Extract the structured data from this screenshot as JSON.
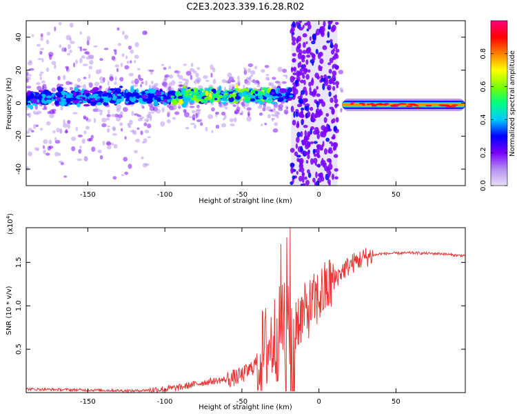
{
  "title": "C2E3.2023.339.16.28.R02",
  "chart_data": [
    {
      "type": "heatmap",
      "xlabel": "Height of straight line (km)",
      "ylabel": "Frequency (Hz)",
      "xlim": [
        -190,
        95
      ],
      "ylim": [
        -50,
        50
      ],
      "xticks": [
        -150,
        -100,
        -50,
        0,
        50
      ],
      "yticks": [
        -40,
        -20,
        0,
        20,
        40
      ],
      "features": {
        "broadband_gap_x": [
          -18,
          12
        ],
        "mean_track_x": [
          -190,
          -20,
          15,
          95
        ],
        "mean_track_freq": [
          3,
          5,
          0,
          -2
        ],
        "narrow_band_from_x": 15
      },
      "colorbar": {
        "label": "Normalized spectral amplitude",
        "range": [
          0,
          1
        ],
        "ticks": [
          "0.0",
          "0.2",
          "0.4",
          "0.6",
          "0.8"
        ],
        "colors": [
          "#e6e0f5",
          "#b48ef0",
          "#7a00ff",
          "#0000ff",
          "#00c8ff",
          "#00ff80",
          "#7cff00",
          "#ffff00",
          "#ff8000",
          "#ff0000",
          "#ff0080"
        ]
      }
    },
    {
      "type": "line",
      "xlabel": "Height of straight line (km)",
      "ylabel": "SNR (10 * v/v)",
      "yscale_label": "(x10",
      "yscale_exp": "4",
      "yscale_close": ")",
      "xlim": [
        -190,
        95
      ],
      "ylim": [
        0,
        1.9
      ],
      "xticks": [
        -150,
        -100,
        -50,
        0,
        50
      ],
      "yticks": [
        0.5,
        1.0,
        1.5
      ],
      "ytick_labels": [
        "0.5",
        "1.0",
        "1.5"
      ],
      "color": "#ee3333",
      "series": [
        {
          "name": "SNR",
          "x": [
            -190,
            -150,
            -120,
            -100,
            -90,
            -80,
            -70,
            -60,
            -55,
            -50,
            -45,
            -40,
            -35,
            -30,
            -25,
            -20,
            -15,
            -10,
            -5,
            0,
            5,
            10,
            15,
            20,
            25,
            30,
            35,
            40,
            60,
            80,
            85,
            90,
            95
          ],
          "y": [
            0.04,
            0.03,
            0.02,
            0.04,
            0.06,
            0.1,
            0.13,
            0.15,
            0.17,
            0.2,
            0.26,
            0.36,
            0.48,
            0.6,
            0.7,
            0.78,
            0.84,
            0.9,
            1.0,
            1.1,
            1.2,
            1.3,
            1.4,
            1.47,
            1.52,
            1.56,
            1.58,
            1.6,
            1.61,
            1.6,
            1.59,
            1.58,
            1.58
          ]
        }
      ]
    }
  ]
}
